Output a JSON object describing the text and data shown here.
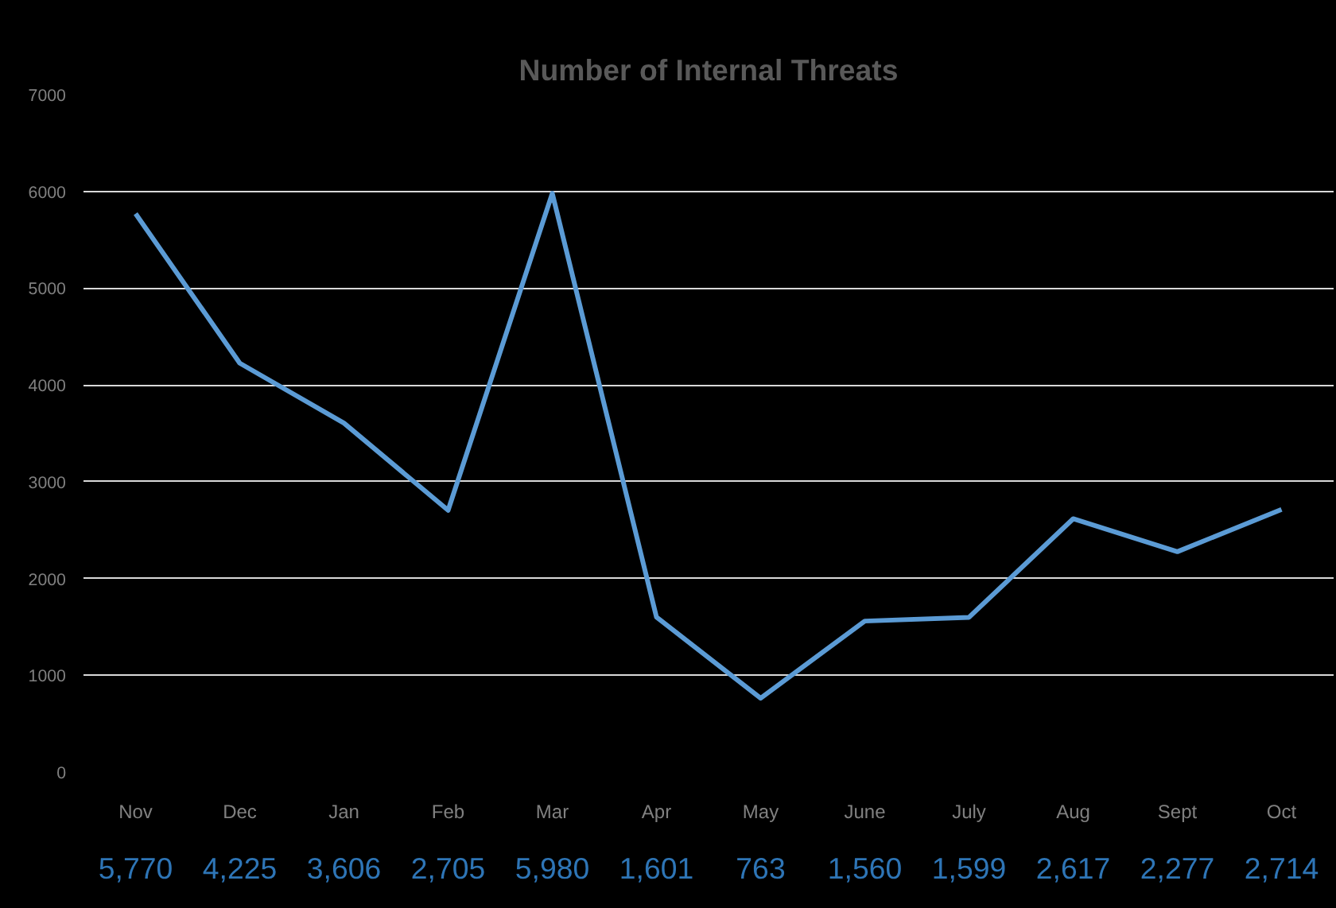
{
  "chart_data": {
    "type": "line",
    "title": "Number of Internal Threats",
    "categories": [
      "Nov",
      "Dec",
      "Jan",
      "Feb",
      "Mar",
      "Apr",
      "May",
      "June",
      "July",
      "Aug",
      "Sept",
      "Oct"
    ],
    "series": [
      {
        "color": "#5b9bd5",
        "values": [
          5770,
          4225,
          3606,
          2705,
          5980,
          1601,
          763,
          1560,
          1599,
          2617,
          2277,
          2714
        ],
        "value_labels": [
          "5,770",
          "4,225",
          "3,606",
          "2,705",
          "5,980",
          "1,601",
          "763",
          "1,560",
          "1,599",
          "2,617",
          "2,277",
          "2,714"
        ]
      }
    ],
    "ylim": [
      0,
      7000
    ],
    "yticks": [
      0,
      1000,
      2000,
      3000,
      4000,
      5000,
      6000,
      7000
    ],
    "grid": "y",
    "marker": "none",
    "line_style": "solid"
  }
}
